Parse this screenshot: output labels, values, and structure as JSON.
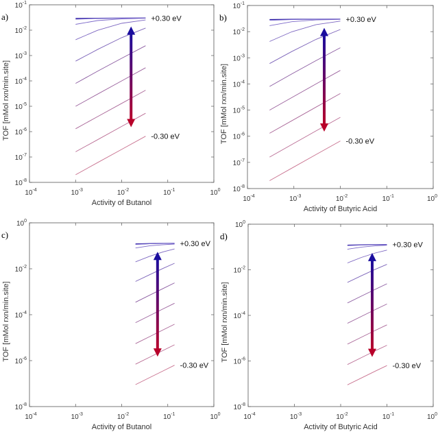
{
  "colors": {
    "top_line": "#2a1aa0",
    "mid_line": "#7b6cd0",
    "bottom_line": "#c8708e",
    "arrow_top": "#1a0d9e",
    "arrow_bottom": "#b8002a",
    "axis": "#555555"
  },
  "chart_data": [
    {
      "type": "line",
      "panel_label": "a)",
      "xlabel": "Activity of Butanol",
      "ylabel": "TOF [mMol rxn/min.site]",
      "xscale": "log",
      "yscale": "log",
      "xlim": [
        0.0001,
        1
      ],
      "ylim": [
        1e-08,
        0.1
      ],
      "xticks": [
        -4,
        -3,
        -2,
        -1,
        0
      ],
      "yticks": [
        -8,
        -7,
        -6,
        -5,
        -4,
        -3,
        -2,
        -1
      ],
      "grid": false,
      "annotations": {
        "top": "+0.30 eV",
        "bottom": "-0.30 eV"
      },
      "arrow": {
        "x": 0.016,
        "y_from": 1.5e-06,
        "y_to": 0.014
      },
      "x": [
        0.001,
        0.003,
        0.01,
        0.033
      ],
      "series": [
        {
          "values": [
            0.029,
            0.0296,
            0.0299,
            0.03
          ]
        },
        {
          "values": [
            0.027,
            0.0289,
            0.0297,
            0.0299
          ]
        },
        {
          "values": [
            0.017,
            0.0239,
            0.0279,
            0.0293
          ]
        },
        {
          "values": [
            0.0042,
            0.00985,
            0.0186,
            0.0253
          ]
        },
        {
          "values": [
            0.0006,
            0.00173,
            0.00508,
            0.0121
          ]
        },
        {
          "values": [
            8e-05,
            0.00024,
            0.00078,
            0.00243
          ]
        },
        {
          "values": [
            1e-05,
            3e-05,
            0.0001,
            0.00033
          ]
        },
        {
          "values": [
            1.3e-06,
            3.9e-06,
            1.3e-05,
            4.3e-05
          ]
        },
        {
          "values": [
            1.6e-07,
            4.8e-07,
            1.6e-06,
            5.3e-06
          ]
        },
        {
          "values": [
            2e-08,
            6e-08,
            2e-07,
            6.6e-07
          ]
        }
      ]
    },
    {
      "type": "line",
      "panel_label": "b)",
      "xlabel": "Activity of Butyric Acid",
      "ylabel": "TOF [mMol rxn/min.site]",
      "xscale": "log",
      "yscale": "log",
      "xlim": [
        0.0001,
        1
      ],
      "ylim": [
        1e-08,
        0.1
      ],
      "xticks": [
        -4,
        -3,
        -2,
        -1,
        0
      ],
      "yticks": [
        -8,
        -7,
        -6,
        -5,
        -4,
        -3,
        -2,
        -1
      ],
      "grid": false,
      "annotations": {
        "top": "+0.30 eV",
        "bottom": "-0.30 eV"
      },
      "arrow": {
        "x": 0.0045,
        "y_from": 1.5e-06,
        "y_to": 0.014
      },
      "x": [
        0.0003,
        0.0009,
        0.003,
        0.01
      ],
      "series": [
        {
          "values": [
            0.029,
            0.0296,
            0.0299,
            0.03
          ]
        },
        {
          "values": [
            0.027,
            0.0289,
            0.0297,
            0.0299
          ]
        },
        {
          "values": [
            0.017,
            0.0239,
            0.0279,
            0.0293
          ]
        },
        {
          "values": [
            0.0042,
            0.00985,
            0.0186,
            0.0253
          ]
        },
        {
          "values": [
            0.0006,
            0.00173,
            0.00508,
            0.0121
          ]
        },
        {
          "values": [
            8e-05,
            0.00024,
            0.00078,
            0.00243
          ]
        },
        {
          "values": [
            1e-05,
            3e-05,
            0.0001,
            0.00033
          ]
        },
        {
          "values": [
            1.3e-06,
            3.9e-06,
            1.3e-05,
            4.3e-05
          ]
        },
        {
          "values": [
            1.6e-07,
            4.8e-07,
            1.6e-06,
            5.3e-06
          ]
        },
        {
          "values": [
            2e-08,
            6e-08,
            2e-07,
            6.6e-07
          ]
        }
      ]
    },
    {
      "type": "line",
      "panel_label": "c)",
      "xlabel": "Activity of Butanol",
      "ylabel": "TOF [mMol rxn/min.site]",
      "xscale": "log",
      "yscale": "log",
      "xlim": [
        0.0001,
        1
      ],
      "ylim": [
        1e-08,
        1
      ],
      "xticks": [
        -4,
        -3,
        -2,
        -1,
        0
      ],
      "yticks": [
        -8,
        -6,
        -4,
        -2,
        0
      ],
      "grid": false,
      "annotations": {
        "top": "+0.30 eV",
        "bottom": "-0.30 eV"
      },
      "arrow": {
        "x": 0.06,
        "y_from": 1.5e-06,
        "y_to": 0.055
      },
      "x": [
        0.02,
        0.04,
        0.08,
        0.14
      ],
      "series": [
        {
          "values": [
            0.12,
            0.1248,
            0.1274,
            0.1285
          ]
        },
        {
          "values": [
            0.115,
            0.122,
            0.126,
            0.128
          ]
        },
        {
          "values": [
            0.08,
            0.099,
            0.112,
            0.119
          ]
        },
        {
          "values": [
            0.02,
            0.0347,
            0.0547,
            0.0729
          ]
        },
        {
          "values": [
            0.0028,
            0.00548,
            0.0105,
            0.0173
          ]
        },
        {
          "values": [
            0.00035,
            0.0007,
            0.00139,
            0.00243
          ]
        },
        {
          "values": [
            4.5e-05,
            9e-05,
            0.00018,
            0.000315
          ]
        },
        {
          "values": [
            5.5e-06,
            1.1e-05,
            2.2e-05,
            3.85e-05
          ]
        },
        {
          "values": [
            7e-07,
            1.4e-06,
            2.8e-06,
            4.9e-06
          ]
        },
        {
          "values": [
            9e-08,
            1.8e-07,
            3.6e-07,
            6.3e-07
          ]
        }
      ]
    },
    {
      "type": "line",
      "panel_label": "d)",
      "xlabel": "Activity of Butyric Acid",
      "ylabel": "TOF [mMol rxn/min.site]",
      "xscale": "log",
      "yscale": "log",
      "xlim": [
        0.0001,
        1
      ],
      "ylim": [
        1e-08,
        1
      ],
      "xticks": [
        -4,
        -3,
        -2,
        -1,
        0
      ],
      "yticks": [
        -8,
        -6,
        -4,
        -2,
        0
      ],
      "grid": false,
      "annotations": {
        "top": "+0.30 eV",
        "bottom": "-0.30 eV"
      },
      "arrow": {
        "x": 0.048,
        "y_from": 1.5e-06,
        "y_to": 0.055
      },
      "x": [
        0.014,
        0.028,
        0.056,
        0.1
      ],
      "series": [
        {
          "values": [
            0.12,
            0.1248,
            0.1274,
            0.1285
          ]
        },
        {
          "values": [
            0.115,
            0.122,
            0.126,
            0.128
          ]
        },
        {
          "values": [
            0.08,
            0.099,
            0.112,
            0.119
          ]
        },
        {
          "values": [
            0.02,
            0.0347,
            0.0547,
            0.0729
          ]
        },
        {
          "values": [
            0.0028,
            0.00548,
            0.0105,
            0.0173
          ]
        },
        {
          "values": [
            0.00035,
            0.0007,
            0.00139,
            0.00243
          ]
        },
        {
          "values": [
            4.5e-05,
            9e-05,
            0.00018,
            0.000315
          ]
        },
        {
          "values": [
            5.5e-06,
            1.1e-05,
            2.2e-05,
            3.85e-05
          ]
        },
        {
          "values": [
            7e-07,
            1.4e-06,
            2.8e-06,
            4.9e-06
          ]
        },
        {
          "values": [
            9e-08,
            1.8e-07,
            3.6e-07,
            6.3e-07
          ]
        }
      ]
    }
  ]
}
